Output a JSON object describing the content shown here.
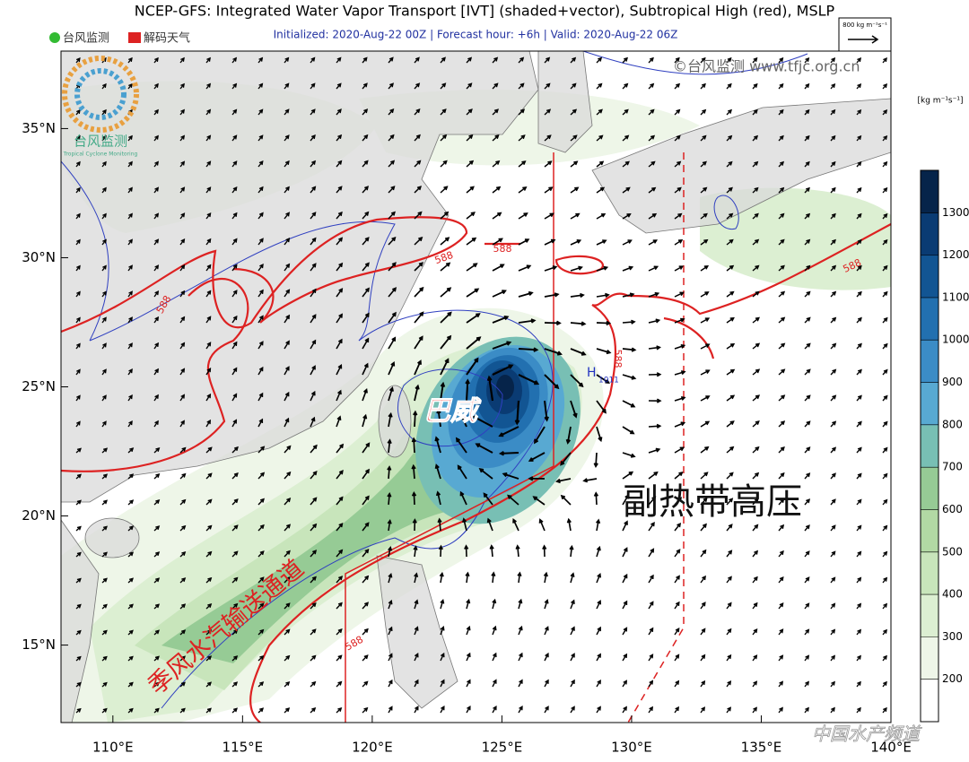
{
  "map": {
    "title": "NCEP-GFS: Integrated Water Vapor Transport [IVT] (shaded+vector), Subtropical High (red), MSLP",
    "subtitle": "Initialized: 2020-Aug-22 00Z  |  Forecast hour: +6h  |  Valid: 2020-Aug-22 06Z",
    "logo_left": "台风监测",
    "logo_right": "解码天气",
    "logo_badge": "台风监测",
    "logo_badge_sub": "Tropical Cyclone Monitoring",
    "watermark": "©台风监测 www.tfjc.org.cn",
    "vector_reference": "800 kg m⁻¹s⁻¹",
    "lonlim": [
      108,
      140
    ],
    "latlim": [
      12,
      38
    ],
    "lon_ticks": [
      {
        "value": 110,
        "label": "110°E"
      },
      {
        "value": 115,
        "label": "115°E"
      },
      {
        "value": 120,
        "label": "120°E"
      },
      {
        "value": 125,
        "label": "125°E"
      },
      {
        "value": 130,
        "label": "130°E"
      },
      {
        "value": 135,
        "label": "135°E"
      },
      {
        "value": 140,
        "label": "140°E"
      }
    ],
    "lat_ticks": [
      {
        "value": 15,
        "label": "15°N"
      },
      {
        "value": 20,
        "label": "20°N"
      },
      {
        "value": 25,
        "label": "25°N"
      },
      {
        "value": 30,
        "label": "30°N"
      },
      {
        "value": 35,
        "label": "35°N"
      }
    ],
    "colorbar": {
      "unit": "[kg m⁻¹s⁻¹]",
      "lim": [
        100,
        1400
      ],
      "ticks": [
        200,
        300,
        400,
        500,
        600,
        700,
        800,
        900,
        1000,
        1100,
        1200,
        1300
      ],
      "colors": [
        "#ffffff",
        "#eef6e8",
        "#dcefd2",
        "#c8e5bb",
        "#b2d9a4",
        "#96cb95",
        "#78bfb4",
        "#58a9d2",
        "#3b8cc6",
        "#2270b0",
        "#125593",
        "#0a3b73",
        "#06244a"
      ]
    },
    "contour_labels": [
      "588",
      "588",
      "588",
      "588",
      "588",
      "588"
    ],
    "pressure_label": "1011",
    "high_label": "H",
    "annotations": [
      "巴威",
      "副热带高压",
      "季风水汽输送通道"
    ],
    "footer_watermark": "中国水产频道"
  }
}
